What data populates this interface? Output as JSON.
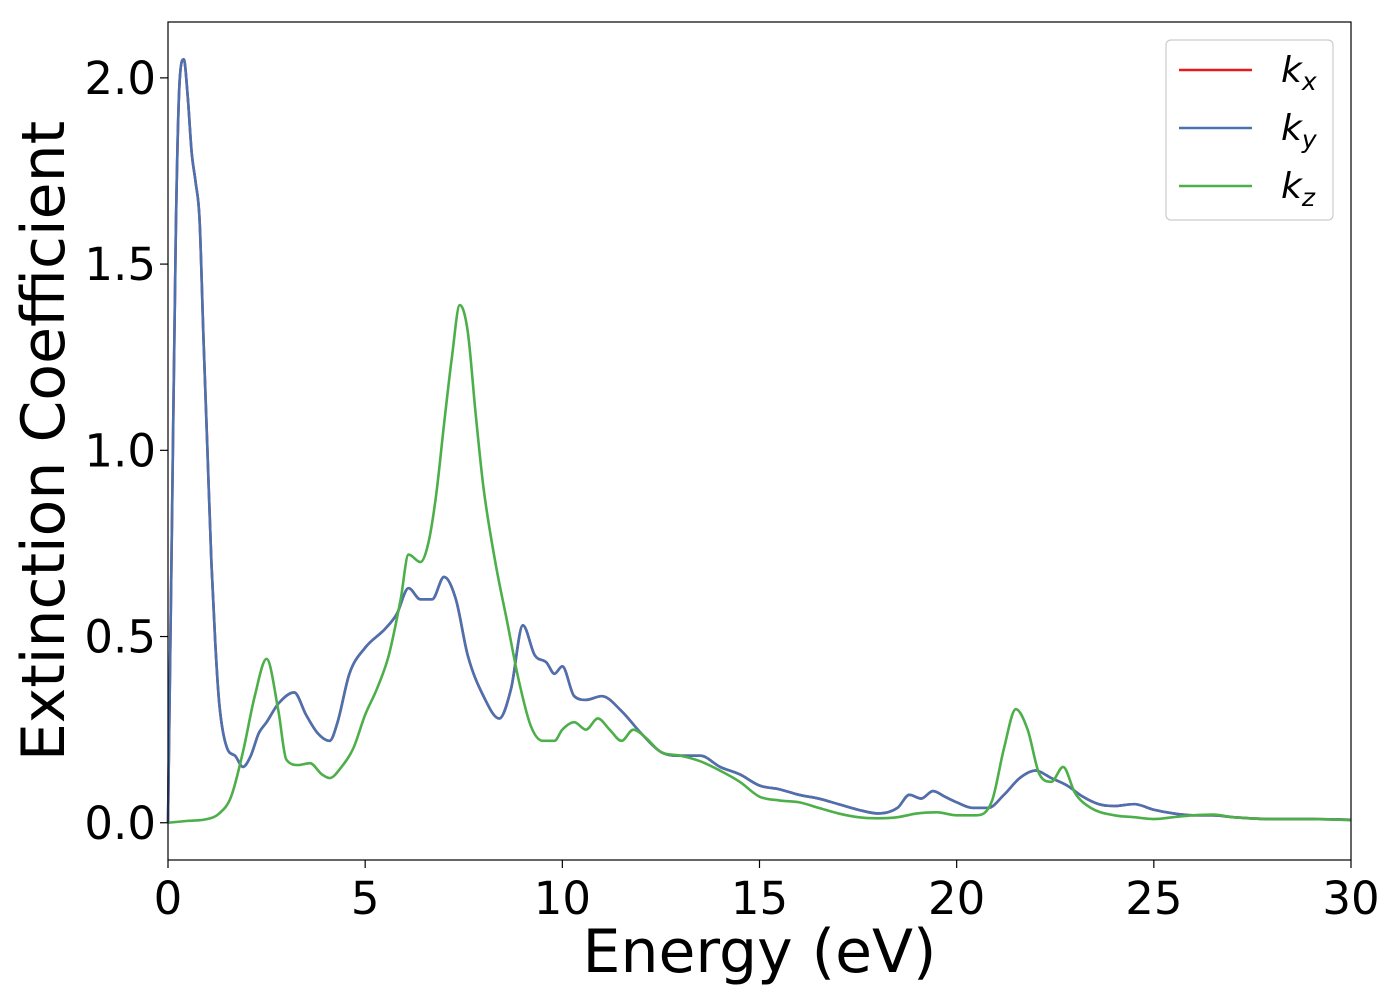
{
  "chart_data": {
    "type": "line",
    "xlabel": "Energy (eV)",
    "ylabel": "Extinction Coefficient",
    "xlim": [
      0,
      30
    ],
    "ylim": [
      -0.1,
      2.15
    ],
    "xticks": [
      0,
      5,
      10,
      15,
      20,
      25,
      30
    ],
    "xtick_labels": [
      "0",
      "5",
      "10",
      "15",
      "20",
      "25",
      "30"
    ],
    "yticks": [
      0.0,
      0.5,
      1.0,
      1.5,
      2.0
    ],
    "ytick_labels": [
      "0.0",
      "0.5",
      "1.0",
      "1.5",
      "2.0"
    ],
    "grid": false,
    "legend_position": "top-right",
    "series": [
      {
        "name": "k_x",
        "label_main": "k",
        "label_sub": "x",
        "color": "#e41a1c",
        "x": [
          0,
          0.1,
          0.2,
          0.3,
          0.4,
          0.5,
          0.6,
          0.7,
          0.8,
          0.9,
          1.0,
          1.1,
          1.2,
          1.3,
          1.5,
          1.7,
          1.9,
          2.1,
          2.3,
          2.5,
          2.8,
          3.2,
          3.5,
          3.8,
          4.1,
          4.3,
          4.6,
          5.0,
          5.5,
          5.8,
          6.1,
          6.4,
          6.7,
          7.0,
          7.3,
          7.6,
          8.0,
          8.4,
          8.7,
          9.0,
          9.3,
          9.6,
          9.8,
          10.0,
          10.3,
          10.6,
          11.0,
          11.5,
          12.0,
          12.5,
          13.0,
          13.5,
          14.0,
          14.5,
          15.0,
          15.5,
          16.0,
          16.5,
          17.0,
          17.5,
          18.0,
          18.5,
          18.8,
          19.1,
          19.4,
          19.7,
          20.0,
          20.4,
          20.8,
          21.2,
          21.6,
          22.0,
          22.4,
          22.8,
          23.2,
          23.6,
          24.0,
          24.5,
          25.0,
          25.5,
          26.0,
          26.5,
          27.0,
          28.0,
          29.0,
          30.0
        ],
        "y": [
          0.0,
          0.8,
          1.6,
          2.0,
          2.05,
          1.95,
          1.8,
          1.72,
          1.62,
          1.3,
          1.0,
          0.7,
          0.48,
          0.32,
          0.2,
          0.18,
          0.15,
          0.18,
          0.24,
          0.27,
          0.32,
          0.35,
          0.29,
          0.24,
          0.22,
          0.27,
          0.4,
          0.47,
          0.52,
          0.56,
          0.63,
          0.6,
          0.6,
          0.66,
          0.6,
          0.45,
          0.34,
          0.28,
          0.36,
          0.53,
          0.45,
          0.43,
          0.4,
          0.42,
          0.34,
          0.33,
          0.34,
          0.3,
          0.24,
          0.19,
          0.18,
          0.18,
          0.15,
          0.13,
          0.1,
          0.09,
          0.075,
          0.065,
          0.05,
          0.035,
          0.025,
          0.04,
          0.075,
          0.065,
          0.085,
          0.07,
          0.055,
          0.04,
          0.04,
          0.075,
          0.12,
          0.14,
          0.12,
          0.1,
          0.07,
          0.05,
          0.045,
          0.05,
          0.035,
          0.025,
          0.02,
          0.02,
          0.015,
          0.01,
          0.01,
          0.008
        ]
      },
      {
        "name": "k_y",
        "label_main": "k",
        "label_sub": "y",
        "color": "#4a72b0",
        "x": [
          0,
          0.1,
          0.2,
          0.3,
          0.4,
          0.5,
          0.6,
          0.7,
          0.8,
          0.9,
          1.0,
          1.1,
          1.2,
          1.3,
          1.5,
          1.7,
          1.9,
          2.1,
          2.3,
          2.5,
          2.8,
          3.2,
          3.5,
          3.8,
          4.1,
          4.3,
          4.6,
          5.0,
          5.5,
          5.8,
          6.1,
          6.4,
          6.7,
          7.0,
          7.3,
          7.6,
          8.0,
          8.4,
          8.7,
          9.0,
          9.3,
          9.6,
          9.8,
          10.0,
          10.3,
          10.6,
          11.0,
          11.5,
          12.0,
          12.5,
          13.0,
          13.5,
          14.0,
          14.5,
          15.0,
          15.5,
          16.0,
          16.5,
          17.0,
          17.5,
          18.0,
          18.5,
          18.8,
          19.1,
          19.4,
          19.7,
          20.0,
          20.4,
          20.8,
          21.2,
          21.6,
          22.0,
          22.4,
          22.8,
          23.2,
          23.6,
          24.0,
          24.5,
          25.0,
          25.5,
          26.0,
          26.5,
          27.0,
          28.0,
          29.0,
          30.0
        ],
        "y": [
          0.0,
          0.8,
          1.6,
          2.0,
          2.05,
          1.95,
          1.8,
          1.72,
          1.62,
          1.3,
          1.0,
          0.7,
          0.48,
          0.32,
          0.2,
          0.18,
          0.15,
          0.18,
          0.24,
          0.27,
          0.32,
          0.35,
          0.29,
          0.24,
          0.22,
          0.27,
          0.4,
          0.47,
          0.52,
          0.56,
          0.63,
          0.6,
          0.6,
          0.66,
          0.6,
          0.45,
          0.34,
          0.28,
          0.36,
          0.53,
          0.45,
          0.43,
          0.4,
          0.42,
          0.34,
          0.33,
          0.34,
          0.3,
          0.24,
          0.19,
          0.18,
          0.18,
          0.15,
          0.13,
          0.1,
          0.09,
          0.075,
          0.065,
          0.05,
          0.035,
          0.025,
          0.04,
          0.075,
          0.065,
          0.085,
          0.07,
          0.055,
          0.04,
          0.04,
          0.075,
          0.12,
          0.14,
          0.12,
          0.1,
          0.07,
          0.05,
          0.045,
          0.05,
          0.035,
          0.025,
          0.02,
          0.02,
          0.015,
          0.01,
          0.01,
          0.008
        ]
      },
      {
        "name": "k_z",
        "label_main": "k",
        "label_sub": "z",
        "color": "#4daf4a",
        "x": [
          0,
          0.5,
          1.0,
          1.3,
          1.6,
          1.9,
          2.2,
          2.5,
          2.8,
          3.0,
          3.3,
          3.6,
          3.9,
          4.1,
          4.4,
          4.7,
          5.0,
          5.3,
          5.6,
          5.9,
          6.1,
          6.4,
          6.6,
          6.8,
          7.0,
          7.2,
          7.4,
          7.6,
          7.8,
          8.0,
          8.3,
          8.6,
          8.9,
          9.2,
          9.5,
          9.8,
          10.0,
          10.3,
          10.6,
          10.9,
          11.2,
          11.5,
          11.8,
          12.1,
          12.5,
          13.0,
          13.5,
          14.0,
          14.5,
          15.0,
          15.5,
          16.0,
          16.5,
          17.0,
          17.5,
          18.0,
          18.5,
          19.0,
          19.5,
          20.0,
          20.5,
          20.9,
          21.2,
          21.5,
          21.8,
          22.1,
          22.4,
          22.7,
          23.0,
          23.4,
          24.0,
          24.5,
          25.0,
          25.5,
          26.0,
          26.5,
          27.0,
          28.0,
          29.0,
          30.0
        ],
        "y": [
          0.0,
          0.005,
          0.01,
          0.025,
          0.07,
          0.19,
          0.34,
          0.44,
          0.3,
          0.17,
          0.155,
          0.16,
          0.13,
          0.12,
          0.15,
          0.2,
          0.29,
          0.36,
          0.45,
          0.6,
          0.72,
          0.7,
          0.75,
          0.88,
          1.07,
          1.25,
          1.39,
          1.32,
          1.1,
          0.9,
          0.7,
          0.54,
          0.38,
          0.26,
          0.22,
          0.22,
          0.25,
          0.27,
          0.25,
          0.28,
          0.25,
          0.22,
          0.25,
          0.23,
          0.19,
          0.18,
          0.165,
          0.14,
          0.11,
          0.07,
          0.06,
          0.055,
          0.04,
          0.025,
          0.015,
          0.012,
          0.015,
          0.025,
          0.028,
          0.02,
          0.02,
          0.06,
          0.2,
          0.305,
          0.25,
          0.13,
          0.11,
          0.15,
          0.08,
          0.04,
          0.02,
          0.015,
          0.01,
          0.015,
          0.02,
          0.022,
          0.015,
          0.01,
          0.01,
          0.007
        ]
      }
    ]
  }
}
